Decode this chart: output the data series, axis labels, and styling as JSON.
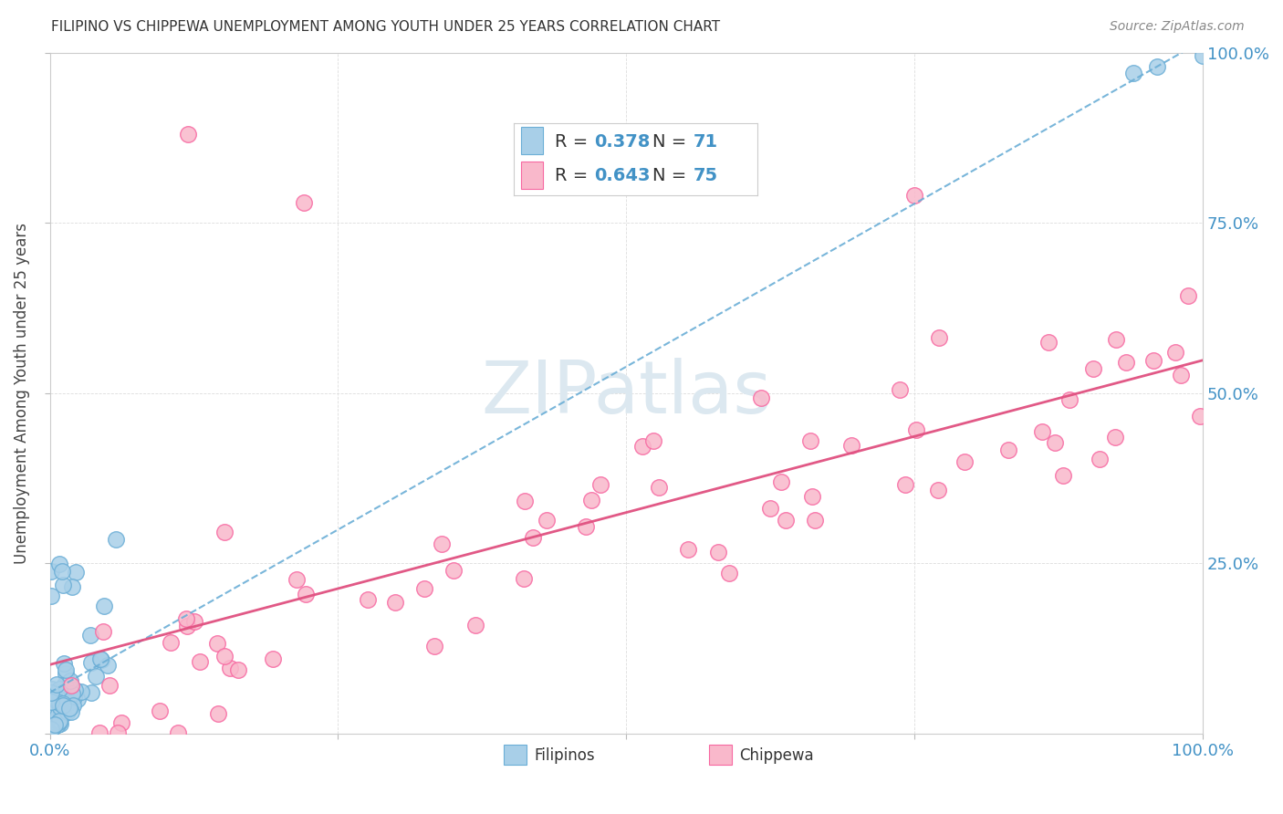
{
  "title": "FILIPINO VS CHIPPEWA UNEMPLOYMENT AMONG YOUTH UNDER 25 YEARS CORRELATION CHART",
  "source": "Source: ZipAtlas.com",
  "ylabel": "Unemployment Among Youth under 25 years",
  "filipino_R": 0.378,
  "filipino_N": 71,
  "chippewa_R": 0.643,
  "chippewa_N": 75,
  "filipino_color": "#a8cfe8",
  "filipino_edge_color": "#6baed6",
  "chippewa_color": "#f9b8cb",
  "chippewa_edge_color": "#f768a1",
  "filipino_line_color": "#6baed6",
  "chippewa_line_color": "#e05080",
  "watermark_color": "#dce8f0",
  "tick_label_color": "#4292c6",
  "title_color": "#333333",
  "source_color": "#888888",
  "grid_color": "#dddddd",
  "spine_color": "#cccccc"
}
